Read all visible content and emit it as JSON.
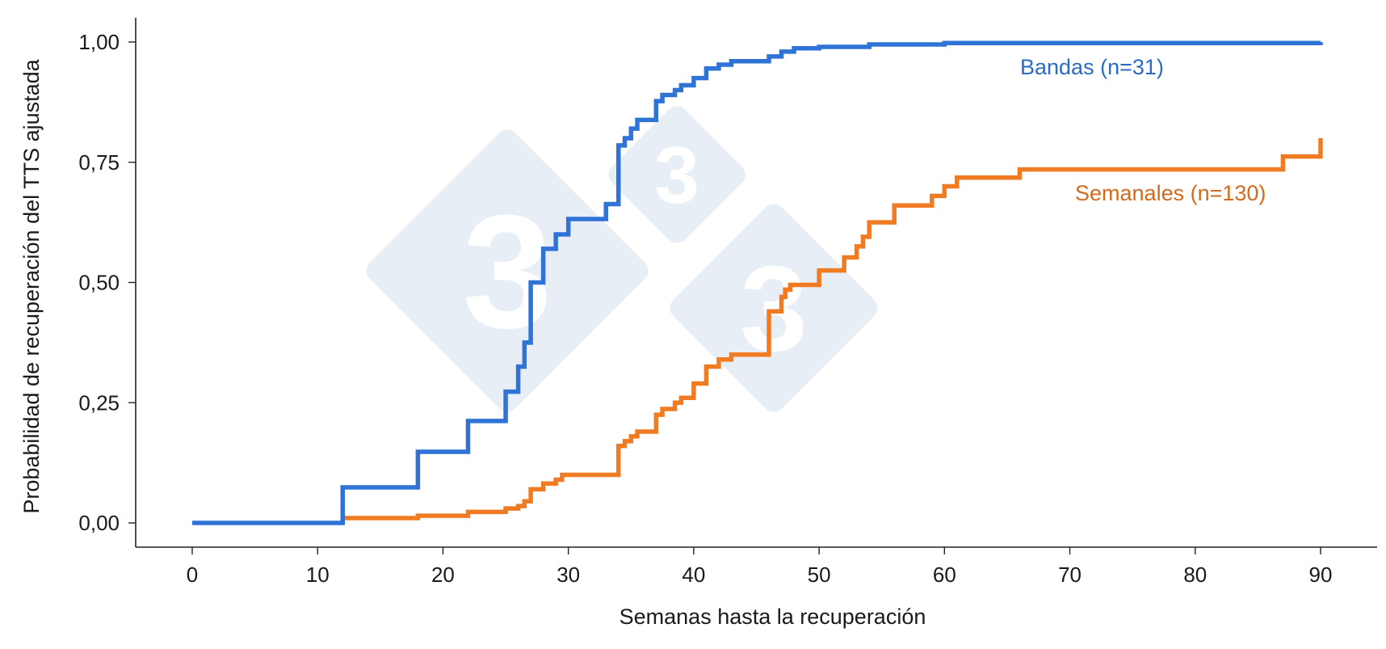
{
  "chart_data": {
    "type": "line",
    "step": true,
    "xlabel": "Semanas hasta la recuperación",
    "ylabel": "Probabilidad de recuperación del TTS ajustada",
    "xlim": [
      0,
      90
    ],
    "ylim": [
      0,
      1
    ],
    "x_ticks": [
      0,
      10,
      20,
      30,
      40,
      50,
      60,
      70,
      80,
      90
    ],
    "x_tick_labels": [
      "0",
      "10",
      "20",
      "30",
      "40",
      "50",
      "60",
      "70",
      "80",
      "90"
    ],
    "y_ticks": [
      0,
      0.25,
      0.5,
      0.75,
      1.0
    ],
    "y_tick_labels": [
      "0,00",
      "0,25",
      "0,50",
      "0,75",
      "1,00"
    ],
    "grid": false,
    "legend": "inline labels",
    "series": [
      {
        "name": "Semanales (n=130)",
        "color": "#f07b23",
        "label_color": "#d46a1c",
        "points": [
          [
            12,
            0.01
          ],
          [
            18,
            0.015
          ],
          [
            22,
            0.023
          ],
          [
            25,
            0.03
          ],
          [
            26,
            0.035
          ],
          [
            26.5,
            0.045
          ],
          [
            27,
            0.07
          ],
          [
            28,
            0.082
          ],
          [
            29,
            0.09
          ],
          [
            29.5,
            0.1
          ],
          [
            34,
            0.16
          ],
          [
            34.5,
            0.17
          ],
          [
            35,
            0.18
          ],
          [
            35.5,
            0.19
          ],
          [
            37,
            0.225
          ],
          [
            37.5,
            0.237
          ],
          [
            38.5,
            0.25
          ],
          [
            39,
            0.26
          ],
          [
            40,
            0.29
          ],
          [
            41,
            0.325
          ],
          [
            42,
            0.34
          ],
          [
            43,
            0.35
          ],
          [
            46,
            0.44
          ],
          [
            47,
            0.47
          ],
          [
            47.3,
            0.485
          ],
          [
            47.7,
            0.495
          ],
          [
            50,
            0.525
          ],
          [
            52,
            0.552
          ],
          [
            53,
            0.575
          ],
          [
            53.5,
            0.595
          ],
          [
            54,
            0.625
          ],
          [
            56,
            0.66
          ],
          [
            59,
            0.68
          ],
          [
            60,
            0.7
          ],
          [
            61,
            0.718
          ],
          [
            66,
            0.735
          ],
          [
            87,
            0.762
          ],
          [
            90,
            0.8
          ]
        ],
        "end_x": 90
      },
      {
        "name": "Bandas (n=31)",
        "color": "#2f73d6",
        "label_color": "#2a6cc4",
        "points": [
          [
            0,
            0.0
          ],
          [
            12,
            0.074
          ],
          [
            18,
            0.148
          ],
          [
            22,
            0.212
          ],
          [
            25,
            0.273
          ],
          [
            26,
            0.325
          ],
          [
            26.5,
            0.375
          ],
          [
            27,
            0.5
          ],
          [
            28,
            0.57
          ],
          [
            29,
            0.6
          ],
          [
            30,
            0.632
          ],
          [
            33,
            0.663
          ],
          [
            34,
            0.785
          ],
          [
            34.5,
            0.8
          ],
          [
            35,
            0.82
          ],
          [
            35.5,
            0.838
          ],
          [
            37,
            0.877
          ],
          [
            37.5,
            0.89
          ],
          [
            38.5,
            0.9
          ],
          [
            39,
            0.91
          ],
          [
            40,
            0.925
          ],
          [
            41,
            0.945
          ],
          [
            42,
            0.953
          ],
          [
            43,
            0.96
          ],
          [
            46,
            0.97
          ],
          [
            47,
            0.98
          ],
          [
            48,
            0.987
          ],
          [
            50,
            0.99
          ],
          [
            54,
            0.995
          ],
          [
            60,
            0.998
          ],
          [
            90,
            1.0
          ]
        ],
        "end_x": 90
      }
    ]
  },
  "watermark": {
    "glyph": "3",
    "color": "#e8eef6"
  }
}
